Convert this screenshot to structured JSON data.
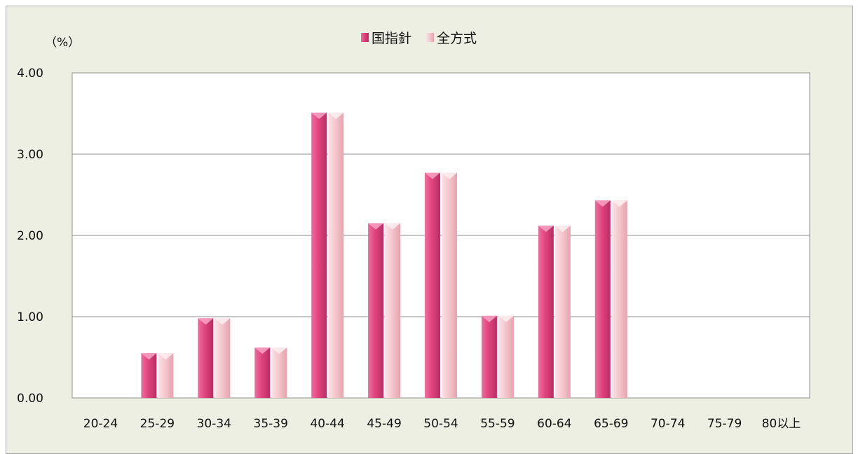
{
  "chart_data": {
    "type": "bar",
    "unit_label": "（%）",
    "categories": [
      "20-24",
      "25-29",
      "30-34",
      "35-39",
      "40-44",
      "45-49",
      "50-54",
      "55-59",
      "60-64",
      "65-69",
      "70-74",
      "75-79",
      "80以上"
    ],
    "series": [
      {
        "name": "国指針",
        "color": "#e0447e",
        "values": [
          0,
          0.55,
          0.98,
          0.62,
          3.51,
          2.15,
          2.77,
          1.01,
          2.12,
          2.43,
          0,
          0,
          0
        ]
      },
      {
        "name": "全方式",
        "color": "#f5c4cb",
        "values": [
          0,
          0.55,
          0.98,
          0.62,
          3.51,
          2.15,
          2.77,
          1.01,
          2.12,
          2.43,
          0,
          0,
          0
        ]
      }
    ],
    "ylim": [
      0,
      4
    ],
    "yticks": [
      "0.00",
      "1.00",
      "2.00",
      "3.00",
      "4.00"
    ],
    "grid": true,
    "legend_position": "top-center"
  }
}
